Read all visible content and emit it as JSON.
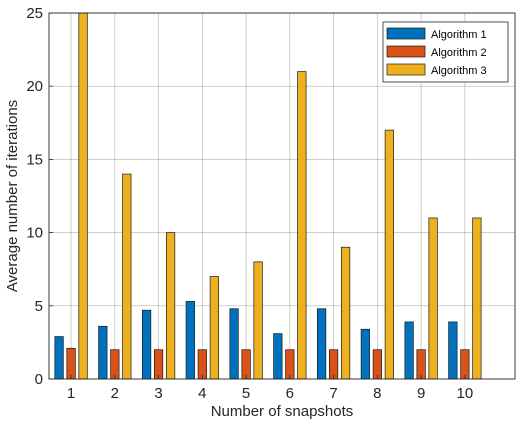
{
  "chart_data": {
    "type": "bar",
    "title": "",
    "xlabel": "Number of snapshots",
    "ylabel": "Average number of iterations",
    "categories": [
      "1",
      "2",
      "3",
      "4",
      "5",
      "6",
      "7",
      "8",
      "9",
      "10"
    ],
    "ylim": [
      0,
      25
    ],
    "yticks": [
      "0",
      "5",
      "10",
      "15",
      "20",
      "25"
    ],
    "grid": true,
    "legend_position": "top-right",
    "series": [
      {
        "name": "Algorithm 1",
        "color": "#0072BD",
        "values": [
          2.9,
          3.6,
          4.7,
          5.3,
          4.8,
          3.1,
          4.8,
          3.4,
          3.9,
          3.9
        ]
      },
      {
        "name": "Algorithm 2",
        "color": "#D95319",
        "values": [
          2.1,
          2.0,
          2.0,
          2.0,
          2.0,
          2.0,
          2.0,
          2.0,
          2.0,
          2.0
        ]
      },
      {
        "name": "Algorithm 3",
        "color": "#EDB120",
        "values": [
          25,
          14,
          10,
          7,
          8,
          21,
          9,
          17,
          11,
          11
        ]
      }
    ]
  }
}
